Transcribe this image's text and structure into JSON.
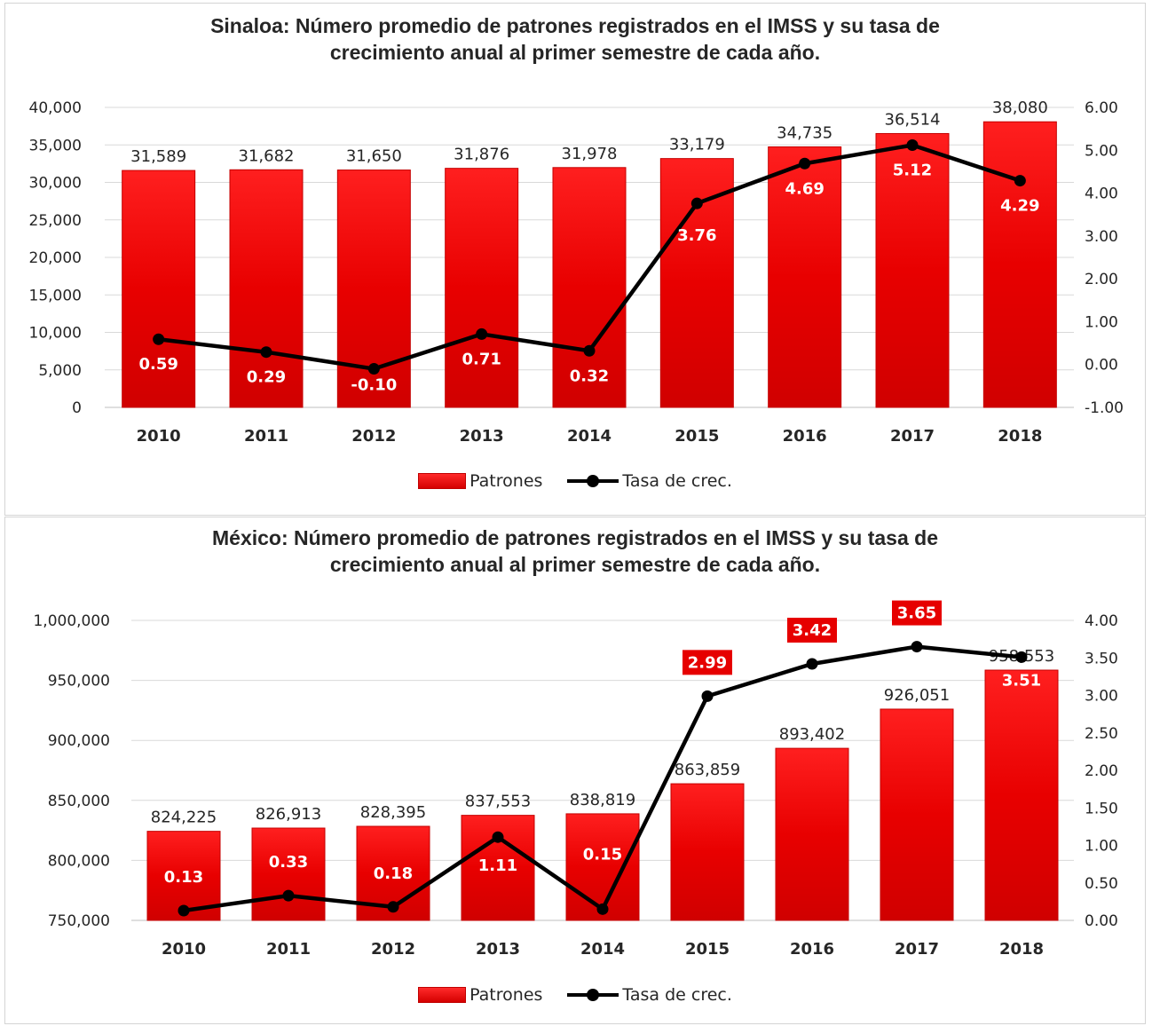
{
  "chart_data": [
    {
      "type": "bar",
      "title": "Sinaloa: Número promedio de patrones registrados en el IMSS y su tasa de crecimiento anual al primer semestre de cada año.",
      "title_lines": [
        "Sinaloa: Número promedio de patrones registrados en el IMSS y su tasa de",
        "crecimiento anual al primer semestre de cada año."
      ],
      "categories": [
        "2010",
        "2011",
        "2012",
        "2013",
        "2014",
        "2015",
        "2016",
        "2017",
        "2018"
      ],
      "series": [
        {
          "name": "Patrones",
          "type": "bar",
          "axis": "left",
          "values": [
            31589,
            31682,
            31650,
            31876,
            31978,
            33179,
            34735,
            36514,
            38080
          ],
          "labels": [
            "31,589",
            "31,682",
            "31,650",
            "31,876",
            "31,978",
            "33,179",
            "34,735",
            "36,514",
            "38,080"
          ],
          "color": "#e60000"
        },
        {
          "name": "Tasa de crec.",
          "type": "line",
          "axis": "right",
          "values": [
            0.59,
            0.29,
            -0.1,
            0.71,
            0.32,
            3.76,
            4.69,
            5.12,
            4.29
          ],
          "labels": [
            "0.59",
            "0.29",
            "-0.10",
            "0.71",
            "0.32",
            "3.76",
            "4.69",
            "5.12",
            "4.29"
          ],
          "color": "#000000"
        }
      ],
      "y_left": {
        "ylim": [
          0,
          40000
        ],
        "ticks": [
          "0",
          "5,000",
          "10,000",
          "15,000",
          "20,000",
          "25,000",
          "30,000",
          "35,000",
          "40,000"
        ]
      },
      "y_right": {
        "ylim": [
          -1,
          6
        ],
        "ticks": [
          "-1.00",
          "0.00",
          "1.00",
          "2.00",
          "3.00",
          "4.00",
          "5.00",
          "6.00"
        ]
      },
      "grid": true,
      "legend": "bottom-center"
    },
    {
      "type": "bar",
      "title": "México: Número promedio de patrones registrados en el IMSS y su tasa de crecimiento anual al primer semestre de cada año.",
      "title_lines": [
        "México: Número promedio de patrones registrados en el IMSS y su tasa de",
        "crecimiento anual al primer semestre de cada año."
      ],
      "categories": [
        "2010",
        "2011",
        "2012",
        "2013",
        "2014",
        "2015",
        "2016",
        "2017",
        "2018"
      ],
      "series": [
        {
          "name": "Patrones",
          "type": "bar",
          "axis": "left",
          "values": [
            824225,
            826913,
            828395,
            837553,
            838819,
            863859,
            893402,
            926051,
            958553
          ],
          "labels": [
            "824,225",
            "826,913",
            "828,395",
            "837,553",
            "838,819",
            "863,859",
            "893,402",
            "926,051",
            "958,553"
          ],
          "color": "#e60000"
        },
        {
          "name": "Tasa de crec.",
          "type": "line",
          "axis": "right",
          "values": [
            0.13,
            0.33,
            0.18,
            1.11,
            0.15,
            2.99,
            3.42,
            3.65,
            3.51
          ],
          "labels": [
            "0.13",
            "0.33",
            "0.18",
            "1.11",
            "0.15",
            "2.99",
            "3.42",
            "3.65",
            "3.51"
          ],
          "color": "#000000"
        }
      ],
      "y_left": {
        "ylim": [
          750000,
          1000000
        ],
        "ticks": [
          "750,000",
          "800,000",
          "850,000",
          "900,000",
          "950,000",
          "1,000,000"
        ]
      },
      "y_right": {
        "ylim": [
          0,
          4
        ],
        "ticks": [
          "0.00",
          "0.50",
          "1.00",
          "1.50",
          "2.00",
          "2.50",
          "3.00",
          "3.50",
          "4.00"
        ]
      },
      "grid": true,
      "legend": "bottom-center"
    }
  ]
}
